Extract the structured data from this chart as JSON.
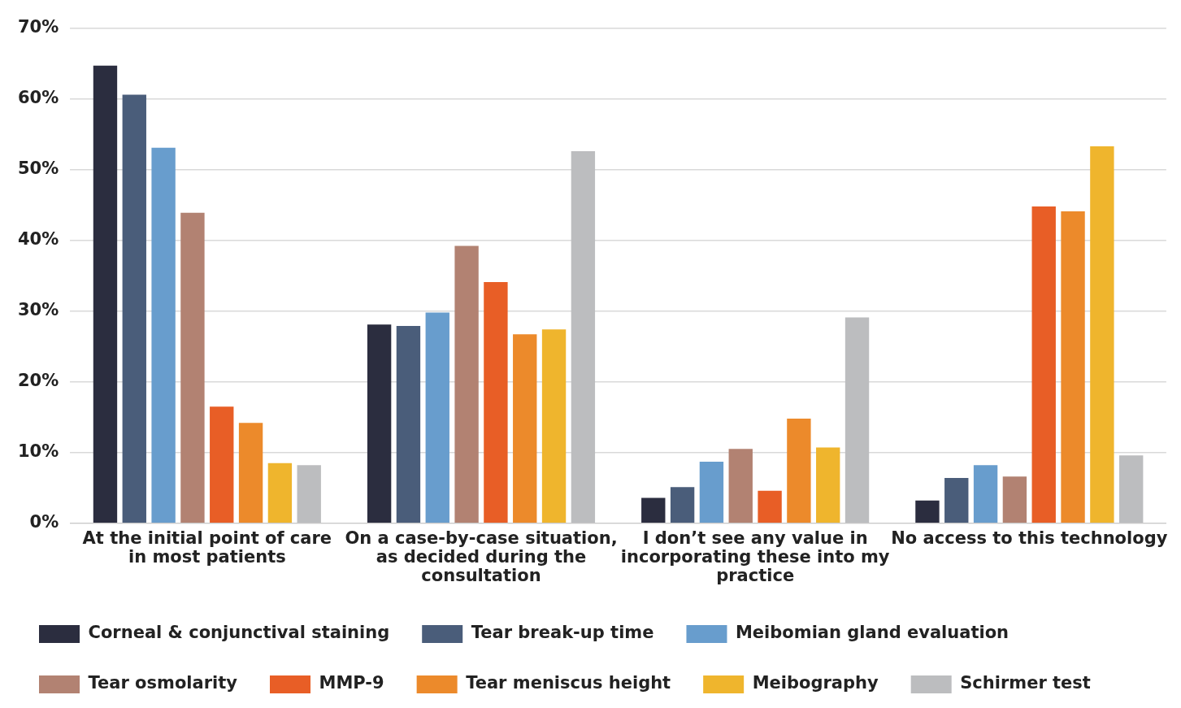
{
  "chart_data": {
    "type": "bar",
    "categories": [
      "At the initial point of care in most patients",
      "On a case-by-case situation, as decided during the consultation",
      "I don’t see any value in incorporating these into my practice",
      "No access to this technology"
    ],
    "series": [
      {
        "name": "Corneal & conjunctival staining",
        "color": "#2b2d3f",
        "values": [
          64.7,
          28.1,
          3.6,
          3.2
        ]
      },
      {
        "name": "Tear break-up time",
        "color": "#4a5d7a",
        "values": [
          60.6,
          27.9,
          5.1,
          6.4
        ]
      },
      {
        "name": "Meibomian gland evaluation",
        "color": "#689dcd",
        "values": [
          53.1,
          29.8,
          8.7,
          8.2
        ]
      },
      {
        "name": "Tear osmolarity",
        "color": "#b28272",
        "values": [
          43.9,
          39.2,
          10.5,
          6.6
        ]
      },
      {
        "name": "MMP-9",
        "color": "#e85e26",
        "values": [
          16.5,
          34.1,
          4.6,
          44.8
        ]
      },
      {
        "name": "Tear meniscus height",
        "color": "#ec8a2b",
        "values": [
          14.2,
          26.7,
          14.8,
          44.1
        ]
      },
      {
        "name": "Meibography",
        "color": "#efb52d",
        "values": [
          8.5,
          27.4,
          10.7,
          53.3
        ]
      },
      {
        "name": "Schirmer test",
        "color": "#bcbdbf",
        "values": [
          8.2,
          52.6,
          29.1,
          9.6
        ]
      }
    ],
    "ylim": [
      0,
      70
    ],
    "yticks": [
      {
        "value": 0,
        "label": "0%"
      },
      {
        "value": 10,
        "label": "10%"
      },
      {
        "value": 20,
        "label": "20%"
      },
      {
        "value": 30,
        "label": "30%"
      },
      {
        "value": 40,
        "label": "40%"
      },
      {
        "value": 50,
        "label": "50%"
      },
      {
        "value": 60,
        "label": "60%"
      },
      {
        "value": 70,
        "label": "70%"
      }
    ],
    "grid": "y",
    "legend": "bottom"
  }
}
